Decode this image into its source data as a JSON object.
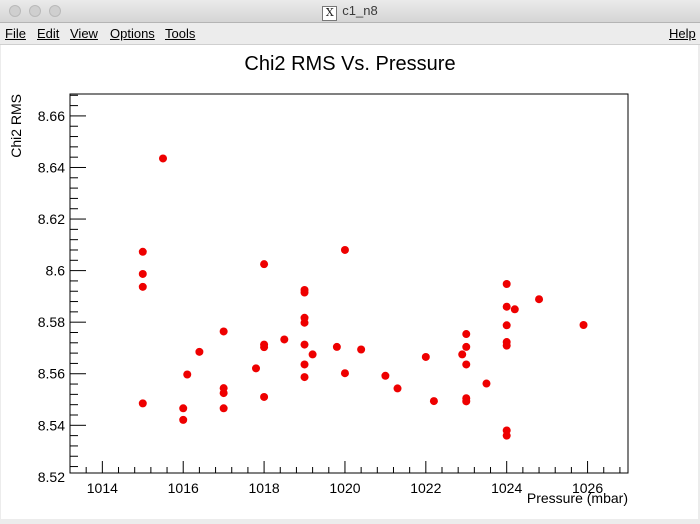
{
  "window": {
    "title": "c1_n8"
  },
  "menu": {
    "file": "File",
    "edit": "Edit",
    "view": "View",
    "options": "Options",
    "tools": "Tools",
    "help": "Help"
  },
  "colors": {
    "marker": "#ee0000",
    "axis": "#000000",
    "canvas": "#ffffff"
  },
  "chart_data": {
    "type": "scatter",
    "title": "Chi2 RMS Vs. Pressure",
    "xlabel": "Pressure (mbar)",
    "ylabel": "Chi2 RMS",
    "xlim": [
      1013.2,
      1027.0
    ],
    "ylim": [
      8.5215,
      8.6685
    ],
    "xticks": [
      1014,
      1016,
      1018,
      1020,
      1022,
      1024,
      1026
    ],
    "xtick_labels": [
      "1014",
      "1016",
      "1018",
      "1020",
      "1022",
      "1024",
      "1026"
    ],
    "yticks": [
      8.52,
      8.54,
      8.56,
      8.58,
      8.6,
      8.62,
      8.64,
      8.66
    ],
    "ytick_labels": [
      "8.52",
      "8.54",
      "8.56",
      "8.58",
      "8.6",
      "8.62",
      "8.64",
      "8.66"
    ],
    "grid": false,
    "points": [
      [
        1015.0,
        8.6073
      ],
      [
        1015.0,
        8.5987
      ],
      [
        1015.0,
        8.5937
      ],
      [
        1015.0,
        8.5485
      ],
      [
        1015.5,
        8.6435
      ],
      [
        1016.0,
        8.5466
      ],
      [
        1016.0,
        8.5421
      ],
      [
        1016.1,
        8.5597
      ],
      [
        1016.4,
        8.5685
      ],
      [
        1017.0,
        8.5764
      ],
      [
        1017.0,
        8.5544
      ],
      [
        1017.0,
        8.5525
      ],
      [
        1017.0,
        8.5466
      ],
      [
        1017.8,
        8.5621
      ],
      [
        1018.0,
        8.6025
      ],
      [
        1018.0,
        8.5713
      ],
      [
        1018.0,
        8.5703
      ],
      [
        1018.0,
        8.551
      ],
      [
        1018.5,
        8.5733
      ],
      [
        1019.0,
        8.5925
      ],
      [
        1019.0,
        8.5915
      ],
      [
        1019.0,
        8.5817
      ],
      [
        1019.0,
        8.5798
      ],
      [
        1019.0,
        8.5713
      ],
      [
        1019.0,
        8.5636
      ],
      [
        1019.0,
        8.5587
      ],
      [
        1019.2,
        8.5675
      ],
      [
        1019.8,
        8.5704
      ],
      [
        1020.0,
        8.608
      ],
      [
        1020.0,
        8.5602
      ],
      [
        1020.4,
        8.5694
      ],
      [
        1021.0,
        8.5592
      ],
      [
        1021.3,
        8.5543
      ],
      [
        1022.0,
        8.5665
      ],
      [
        1022.2,
        8.5494
      ],
      [
        1022.9,
        8.5675
      ],
      [
        1023.0,
        8.5754
      ],
      [
        1023.0,
        8.5704
      ],
      [
        1023.0,
        8.5636
      ],
      [
        1023.0,
        8.5505
      ],
      [
        1023.0,
        8.5493
      ],
      [
        1023.5,
        8.5562
      ],
      [
        1024.0,
        8.5948
      ],
      [
        1024.0,
        8.586
      ],
      [
        1024.0,
        8.5788
      ],
      [
        1024.0,
        8.5723
      ],
      [
        1024.0,
        8.5709
      ],
      [
        1024.0,
        8.538
      ],
      [
        1024.0,
        8.536
      ],
      [
        1024.2,
        8.585
      ],
      [
        1024.8,
        8.5889
      ],
      [
        1025.9,
        8.5789
      ]
    ]
  }
}
